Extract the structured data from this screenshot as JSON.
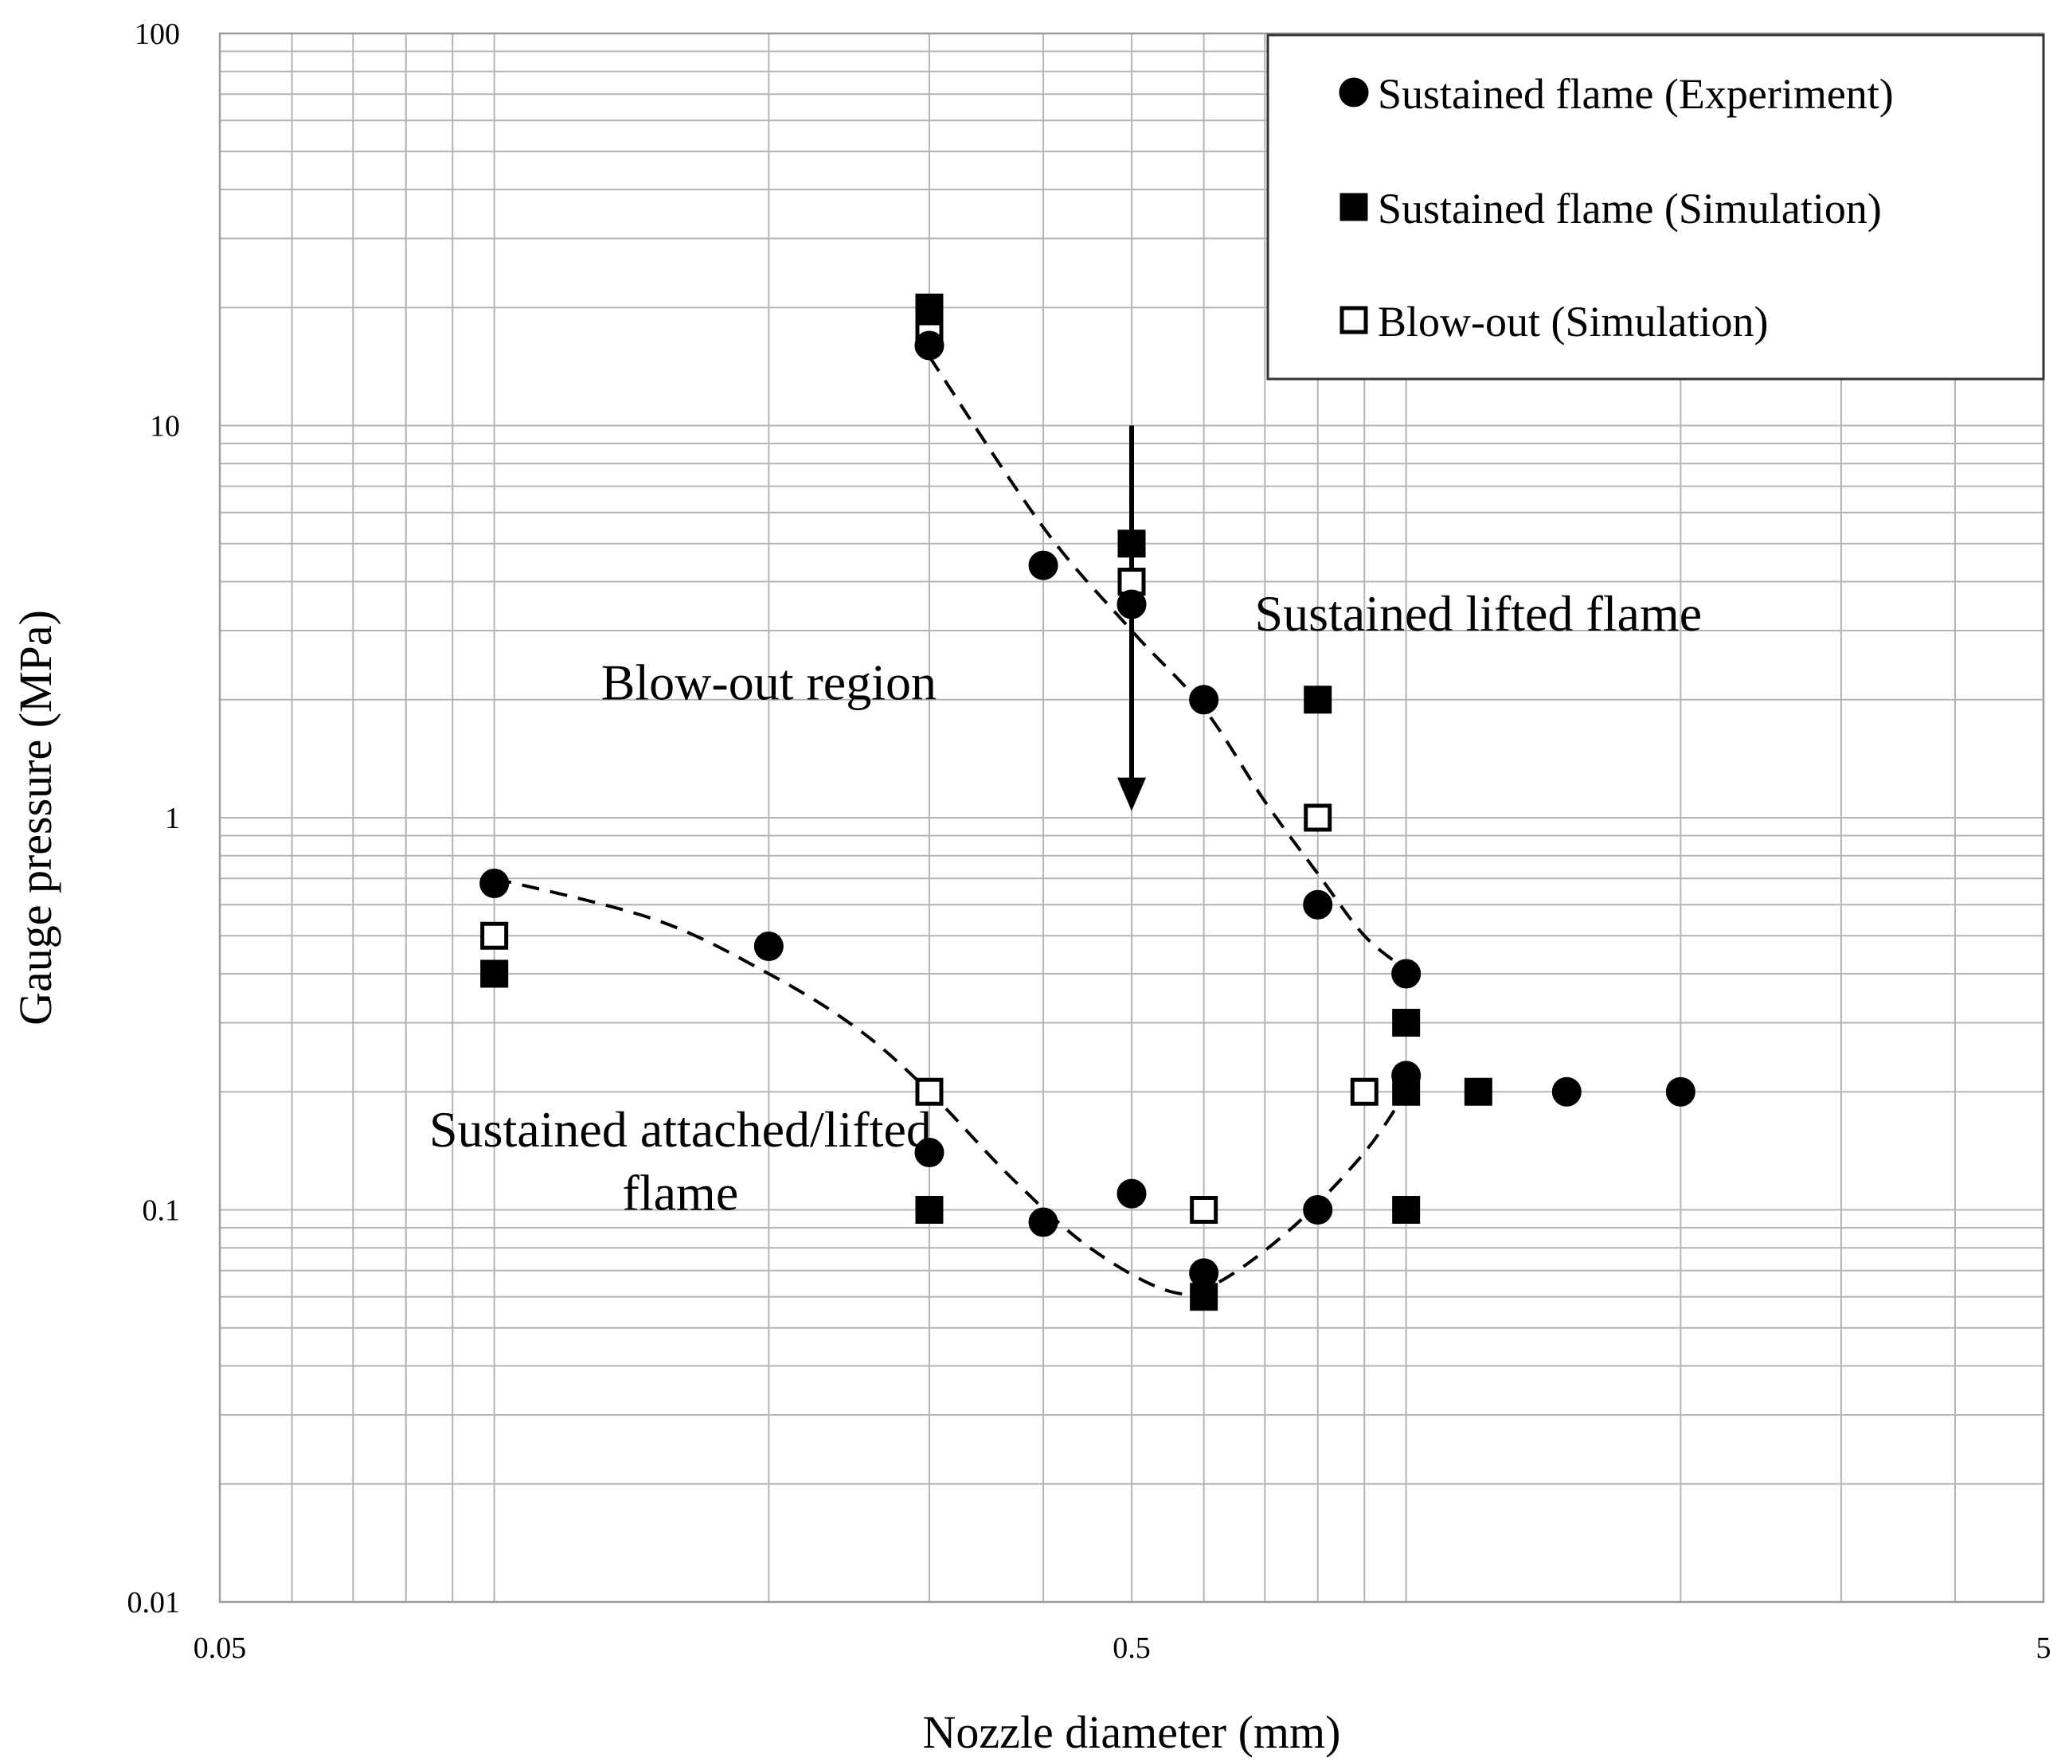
{
  "chart_data": {
    "type": "scatter",
    "xlabel": "Nozzle diameter (mm)",
    "ylabel": "Gauge pressure (MPa)",
    "x_scale": "log",
    "y_scale": "log",
    "xlim": [
      0.05,
      5
    ],
    "ylim": [
      0.01,
      100
    ],
    "x_tick_labels": [
      "0.05",
      "0.5",
      "5"
    ],
    "y_tick_labels": [
      "0.01",
      "0.1",
      "1",
      "10",
      "100"
    ],
    "grid": true,
    "legend_position": "top-right",
    "series": [
      {
        "name": "Sustained flame (Experiment)",
        "marker": "filled-circle",
        "points": [
          {
            "x": 0.1,
            "y": 0.68
          },
          {
            "x": 0.2,
            "y": 0.47
          },
          {
            "x": 0.3,
            "y": 16
          },
          {
            "x": 0.3,
            "y": 0.14
          },
          {
            "x": 0.4,
            "y": 4.4
          },
          {
            "x": 0.4,
            "y": 0.093
          },
          {
            "x": 0.5,
            "y": 3.5
          },
          {
            "x": 0.5,
            "y": 0.11
          },
          {
            "x": 0.6,
            "y": 2.0
          },
          {
            "x": 0.6,
            "y": 0.069
          },
          {
            "x": 0.8,
            "y": 0.6
          },
          {
            "x": 0.8,
            "y": 0.1
          },
          {
            "x": 1.0,
            "y": 0.4
          },
          {
            "x": 1.0,
            "y": 0.22
          },
          {
            "x": 1.5,
            "y": 0.2
          },
          {
            "x": 2.0,
            "y": 0.2
          }
        ]
      },
      {
        "name": "Sustained flame (Simulation)",
        "marker": "filled-square",
        "points": [
          {
            "x": 0.1,
            "y": 0.4
          },
          {
            "x": 0.3,
            "y": 20
          },
          {
            "x": 0.3,
            "y": 0.1
          },
          {
            "x": 0.5,
            "y": 5.0
          },
          {
            "x": 0.6,
            "y": 0.06
          },
          {
            "x": 0.8,
            "y": 2.0
          },
          {
            "x": 1.0,
            "y": 0.3
          },
          {
            "x": 1.0,
            "y": 0.2
          },
          {
            "x": 1.0,
            "y": 0.1
          },
          {
            "x": 1.2,
            "y": 0.2
          }
        ]
      },
      {
        "name": "Blow-out (Simulation)",
        "marker": "open-square",
        "points": [
          {
            "x": 0.1,
            "y": 0.5
          },
          {
            "x": 0.3,
            "y": 17
          },
          {
            "x": 0.3,
            "y": 0.2
          },
          {
            "x": 0.5,
            "y": 4.0
          },
          {
            "x": 0.6,
            "y": 0.1
          },
          {
            "x": 0.8,
            "y": 1.0
          },
          {
            "x": 0.9,
            "y": 0.2
          }
        ]
      }
    ],
    "trend_lines": [
      {
        "style": "dashed",
        "points": [
          [
            0.3,
            15
          ],
          [
            0.4,
            5.5
          ],
          [
            0.5,
            3.0
          ],
          [
            0.6,
            1.9
          ],
          [
            0.7,
            1.1
          ],
          [
            0.8,
            0.72
          ],
          [
            0.9,
            0.5
          ],
          [
            1.0,
            0.41
          ]
        ]
      },
      {
        "style": "dashed",
        "points": [
          [
            0.1,
            0.7
          ],
          [
            0.15,
            0.55
          ],
          [
            0.2,
            0.4
          ],
          [
            0.25,
            0.29
          ],
          [
            0.3,
            0.2
          ],
          [
            0.37,
            0.12
          ],
          [
            0.45,
            0.08
          ],
          [
            0.55,
            0.062
          ],
          [
            0.62,
            0.065
          ],
          [
            0.75,
            0.09
          ],
          [
            0.9,
            0.14
          ],
          [
            1.0,
            0.2
          ]
        ]
      }
    ],
    "arrow": {
      "x": 0.5,
      "y_from": 10,
      "y_to": 1.1
    },
    "annotations": [
      {
        "text": "Blow-out region",
        "x": 0.2,
        "y": 2.0
      },
      {
        "text": "Sustained lifted flame",
        "x": 1.2,
        "y": 3.0
      },
      {
        "text": "Sustained attached/lifted",
        "x": 0.16,
        "y": 0.145
      },
      {
        "text": "flame",
        "x": 0.16,
        "y": 0.1
      }
    ]
  }
}
